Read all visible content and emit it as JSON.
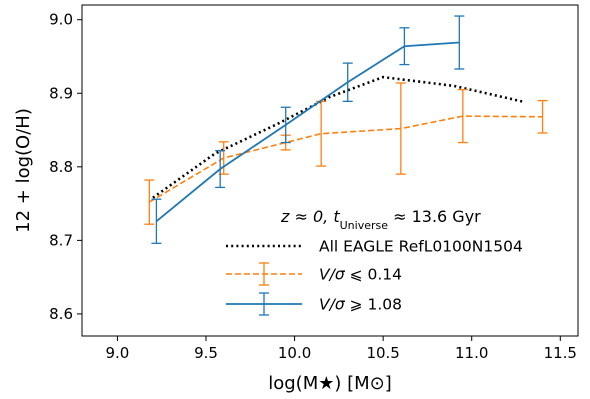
{
  "chart_data": {
    "type": "line",
    "xlabel": "log(M★) [M⊙]",
    "ylabel": "12 + log(O/H)",
    "xlim": [
      8.8,
      11.6
    ],
    "ylim": [
      8.57,
      9.02
    ],
    "xticks": [
      "9.0",
      "9.5",
      "10.0",
      "10.5",
      "11.0",
      "11.5"
    ],
    "yticks": [
      "8.6",
      "8.7",
      "8.8",
      "8.9",
      "9.0"
    ],
    "annotation": "z ≈ 0, t_Universe ≈ 13.6 Gyr",
    "annotation_parts": {
      "main": "z ≈ 0, t",
      "sub": "Universe",
      "tail": " ≈ 13.6 Gyr"
    },
    "grid": false,
    "legend_position": "lower-right",
    "series": [
      {
        "name": "All EAGLE RefL0100N1504",
        "style": "dotted",
        "color": "#000000",
        "x": [
          9.2,
          9.55,
          9.9,
          10.2,
          10.5,
          10.9,
          11.3
        ],
        "y": [
          8.758,
          8.818,
          8.858,
          8.895,
          8.922,
          8.91,
          8.888
        ],
        "err": null
      },
      {
        "name": "V/σ ⩽ 0.14",
        "style": "dashed",
        "color": "#ff7f0e",
        "x": [
          9.18,
          9.6,
          9.95,
          10.15,
          10.6,
          10.95,
          11.4
        ],
        "y": [
          8.752,
          8.812,
          8.833,
          8.845,
          8.852,
          8.869,
          8.868
        ],
        "err": [
          0.03,
          0.022,
          0.01,
          0.044,
          0.062,
          0.036,
          0.022
        ]
      },
      {
        "name": "V/σ ⩾ 1.08",
        "style": "solid",
        "color": "#1f77b4",
        "x": [
          9.22,
          9.58,
          9.95,
          10.3,
          10.62,
          10.93
        ],
        "y": [
          8.726,
          8.797,
          8.857,
          8.915,
          8.964,
          8.969
        ],
        "err": [
          0.03,
          0.025,
          0.024,
          0.026,
          0.025,
          0.036
        ]
      }
    ]
  }
}
